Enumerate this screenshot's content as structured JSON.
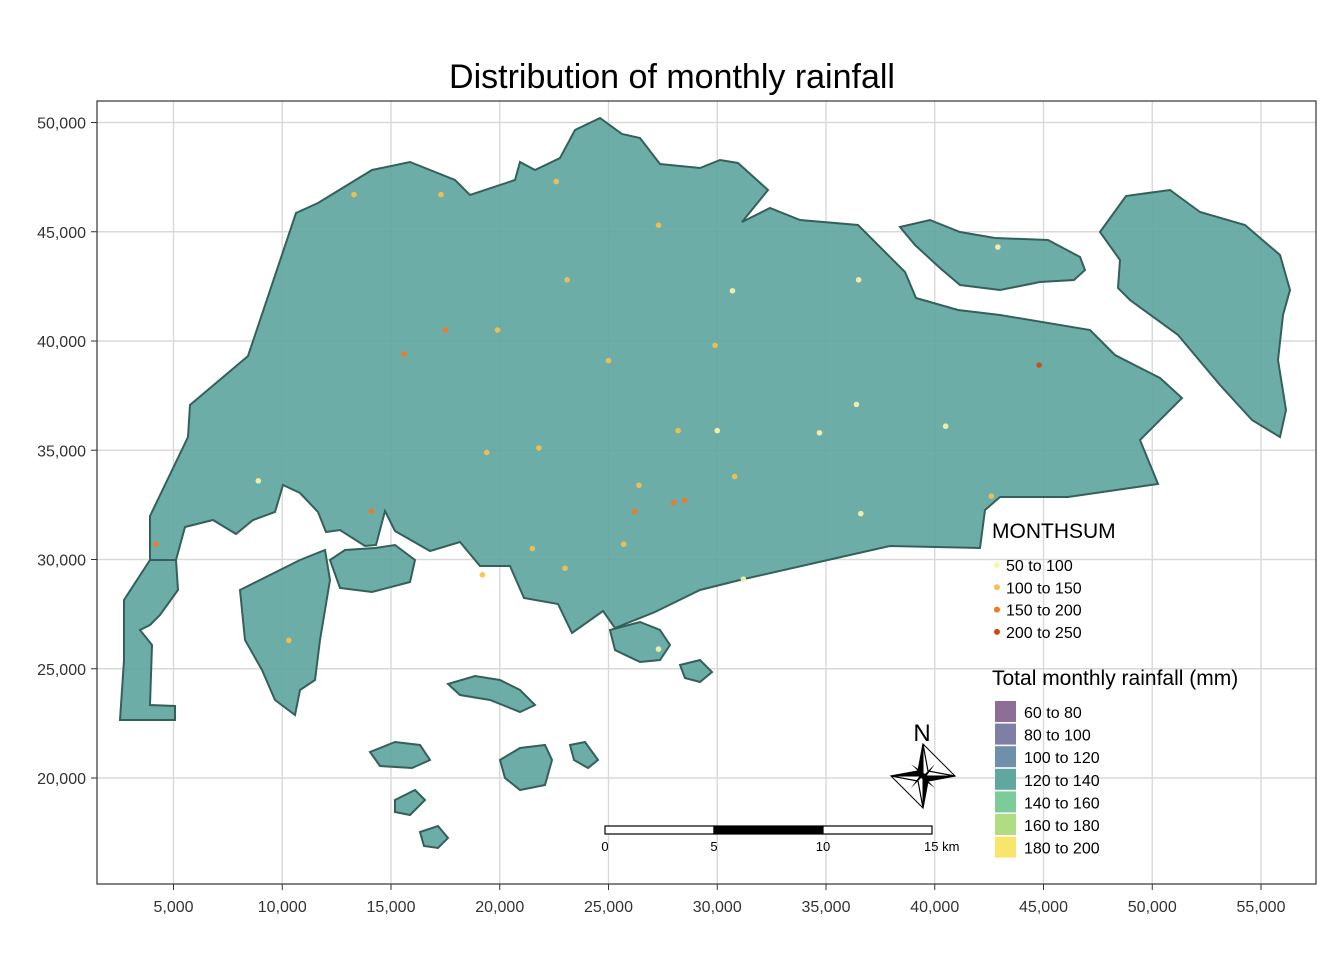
{
  "chart_data": {
    "type": "map",
    "title": "Distribution of monthly rainfall",
    "x_ticks": [
      5000,
      10000,
      15000,
      20000,
      25000,
      30000,
      35000,
      40000,
      45000,
      50000,
      55000
    ],
    "x_tick_labels": [
      "5,000",
      "10,000",
      "15,000",
      "20,000",
      "25,000",
      "30,000",
      "35,000",
      "40,000",
      "45,000",
      "50,000",
      "55,000"
    ],
    "y_ticks": [
      20000,
      25000,
      30000,
      35000,
      40000,
      45000,
      50000
    ],
    "y_tick_labels": [
      "20,000",
      "25,000",
      "30,000",
      "35,000",
      "40,000",
      "45,000",
      "50,000"
    ],
    "xlim": [
      2300,
      57000
    ],
    "ylim": [
      15000,
      51000
    ],
    "grid": true,
    "raster_legend": {
      "title": "Total monthly rainfall (mm)",
      "classes": [
        {
          "label": "60 to 80",
          "color": "#8e6e96"
        },
        {
          "label": "80 to 100",
          "color": "#7e7ea6"
        },
        {
          "label": "100 to 120",
          "color": "#6f8faa"
        },
        {
          "label": "120 to 140",
          "color": "#5fa79f"
        },
        {
          "label": "140 to 160",
          "color": "#7ccc9a"
        },
        {
          "label": "160 to 180",
          "color": "#b0dd82"
        },
        {
          "label": "180 to 200",
          "color": "#f8e66c"
        }
      ]
    },
    "station_legend": {
      "title": "MONTHSUM",
      "classes": [
        {
          "label": "50 to 100",
          "color": "#fff3a8"
        },
        {
          "label": "100 to 150",
          "color": "#fbbf4d"
        },
        {
          "label": "150 to 200",
          "color": "#f4791e"
        },
        {
          "label": "200 to 250",
          "color": "#cc4a12"
        }
      ]
    },
    "stations": [
      {
        "x": 13300,
        "y": 46700,
        "cls": 1
      },
      {
        "x": 17300,
        "y": 46700,
        "cls": 1
      },
      {
        "x": 22600,
        "y": 47300,
        "cls": 1
      },
      {
        "x": 27300,
        "y": 45300,
        "cls": 1
      },
      {
        "x": 23100,
        "y": 42800,
        "cls": 1
      },
      {
        "x": 15600,
        "y": 39400,
        "cls": 2
      },
      {
        "x": 17500,
        "y": 40500,
        "cls": 2
      },
      {
        "x": 19900,
        "y": 40500,
        "cls": 1
      },
      {
        "x": 25000,
        "y": 39100,
        "cls": 1
      },
      {
        "x": 30700,
        "y": 42300,
        "cls": 0
      },
      {
        "x": 36500,
        "y": 42800,
        "cls": 0
      },
      {
        "x": 42900,
        "y": 44300,
        "cls": 0
      },
      {
        "x": 29900,
        "y": 39800,
        "cls": 1
      },
      {
        "x": 44800,
        "y": 38900,
        "cls": 3
      },
      {
        "x": 36400,
        "y": 37100,
        "cls": 0
      },
      {
        "x": 40500,
        "y": 36100,
        "cls": 0
      },
      {
        "x": 34700,
        "y": 35800,
        "cls": 0
      },
      {
        "x": 30000,
        "y": 35900,
        "cls": 0
      },
      {
        "x": 28200,
        "y": 35900,
        "cls": 1
      },
      {
        "x": 21800,
        "y": 35100,
        "cls": 1
      },
      {
        "x": 19400,
        "y": 34900,
        "cls": 1
      },
      {
        "x": 30800,
        "y": 33800,
        "cls": 1
      },
      {
        "x": 26400,
        "y": 33400,
        "cls": 1
      },
      {
        "x": 28000,
        "y": 32600,
        "cls": 2
      },
      {
        "x": 28500,
        "y": 32700,
        "cls": 2
      },
      {
        "x": 26200,
        "y": 32200,
        "cls": 2
      },
      {
        "x": 8900,
        "y": 33600,
        "cls": 0
      },
      {
        "x": 14100,
        "y": 32200,
        "cls": 2
      },
      {
        "x": 4200,
        "y": 30700,
        "cls": 2
      },
      {
        "x": 21500,
        "y": 30500,
        "cls": 1
      },
      {
        "x": 25700,
        "y": 30700,
        "cls": 1
      },
      {
        "x": 23000,
        "y": 29600,
        "cls": 1
      },
      {
        "x": 19200,
        "y": 29300,
        "cls": 1
      },
      {
        "x": 31200,
        "y": 29100,
        "cls": 0
      },
      {
        "x": 36600,
        "y": 32100,
        "cls": 0
      },
      {
        "x": 42600,
        "y": 32900,
        "cls": 1
      },
      {
        "x": 10300,
        "y": 26300,
        "cls": 1
      },
      {
        "x": 27300,
        "y": 25900,
        "cls": 0
      }
    ],
    "scale_bar": {
      "labels": [
        "0",
        "5",
        "10",
        "15 km"
      ]
    },
    "north_arrow": {
      "label": "N"
    }
  }
}
